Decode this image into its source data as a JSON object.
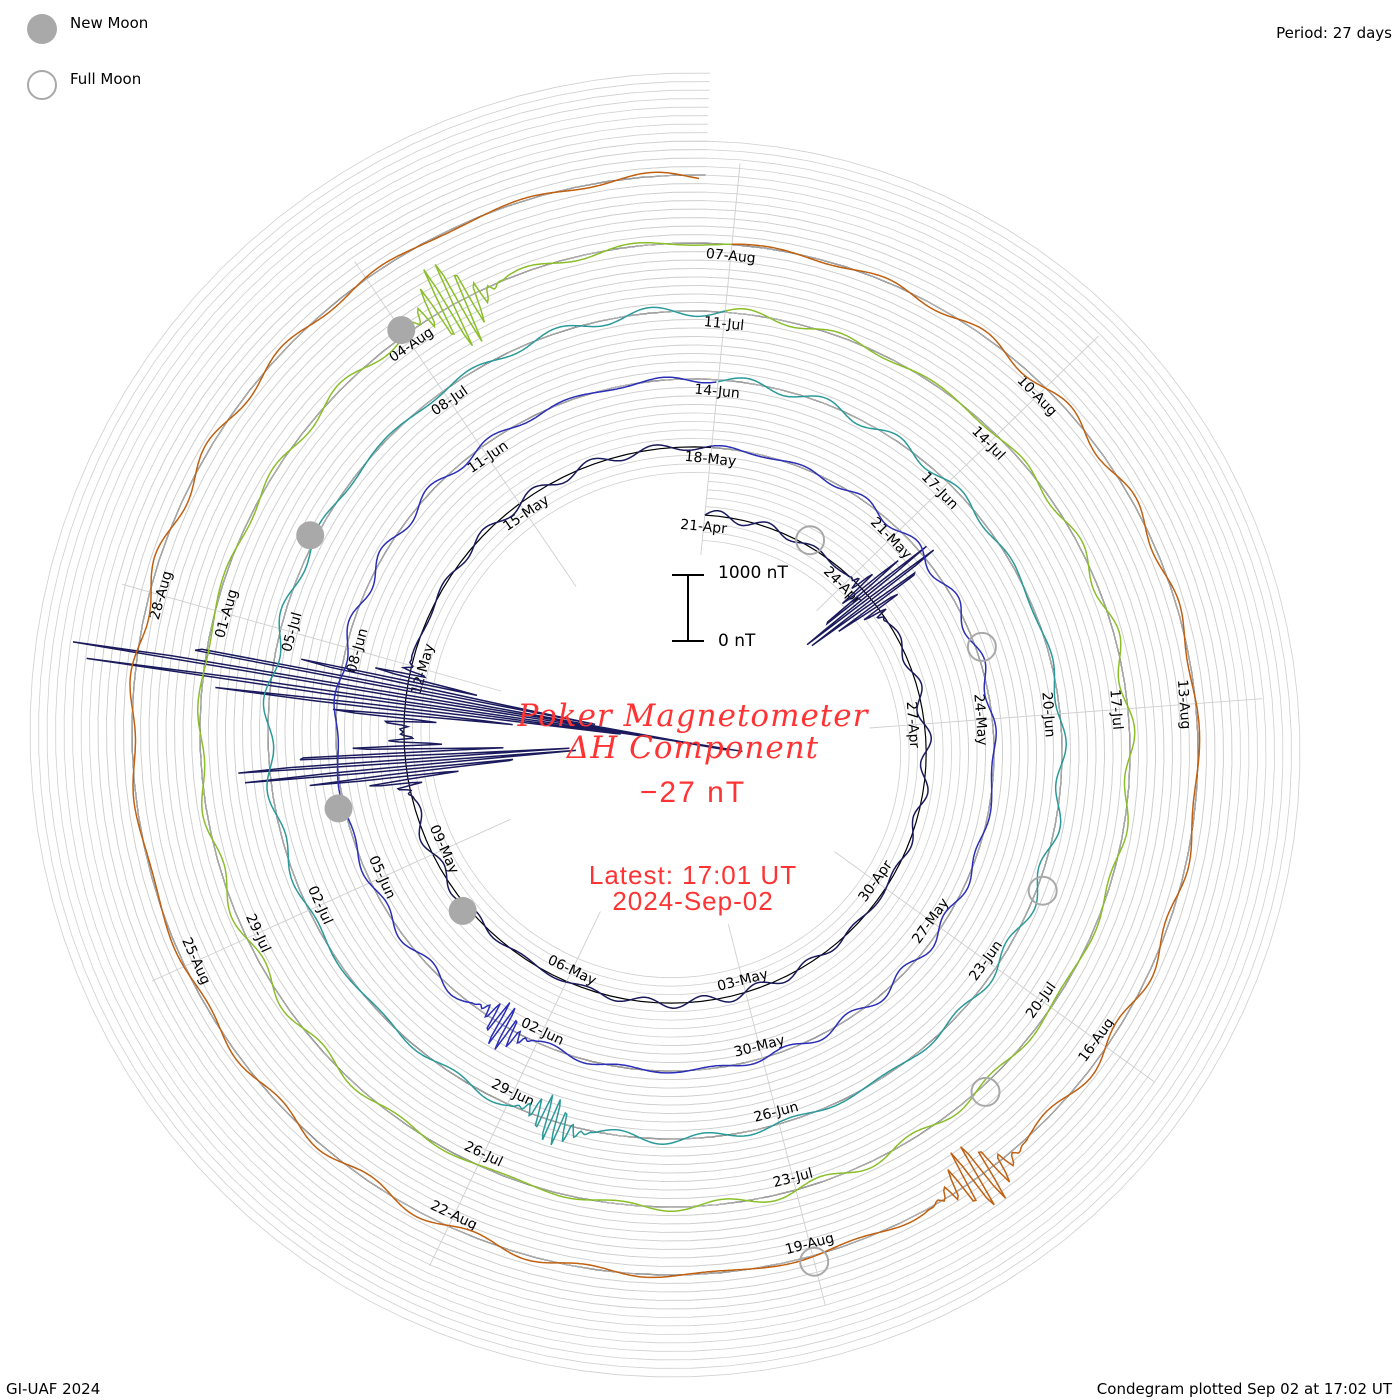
{
  "header": {
    "legend": [
      {
        "label": "New Moon",
        "marker": "filled-gray-circle"
      },
      {
        "label": "Full Moon",
        "marker": "open-gray-circle"
      }
    ],
    "period": "Period: 27 days"
  },
  "center": {
    "title_line1": "Poker Magnetometer",
    "title_line2": "ΔH Component",
    "latest_value": "−27 nT",
    "latest_time": "Latest: 17:01 UT",
    "latest_date": "2024-Sep-02",
    "scale_top": "1000 nT",
    "scale_bottom": "0 nT"
  },
  "footer": {
    "credit": "GI-UAF 2024",
    "plotted": "Condegram plotted Sep 02 at 17:02 UT"
  },
  "colors": {
    "title": "#ff3333",
    "grid": "#c8c8c8",
    "moon": "#a9a9a9"
  },
  "chart_data": {
    "type": "line",
    "subtype": "condegram (polar spiral)",
    "period_days": 27,
    "start_date": "2024-Apr-21",
    "end_date": "2024-Sep-02 17:01 UT",
    "scale_nT": [
      0,
      1000
    ],
    "cycles": [
      {
        "cycle": 1,
        "dates": [
          "21-Apr",
          "24-Apr",
          "27-Apr",
          "30-Apr",
          "03-May",
          "06-May",
          "09-May",
          "12-May",
          "15-May"
        ],
        "color": "#1a1a5c"
      },
      {
        "cycle": 2,
        "dates": [
          "18-May",
          "21-May",
          "24-May",
          "27-May",
          "30-May",
          "02-Jun",
          "05-Jun",
          "08-Jun",
          "11-Jun"
        ],
        "color": "#2b2fb8"
      },
      {
        "cycle": 3,
        "dates": [
          "14-Jun",
          "17-Jun",
          "20-Jun",
          "23-Jun",
          "26-Jun",
          "29-Jun",
          "02-Jul",
          "05-Jul",
          "08-Jul"
        ],
        "color": "#2a9a9a"
      },
      {
        "cycle": 4,
        "dates": [
          "11-Jul",
          "14-Jul",
          "17-Jul",
          "20-Jul",
          "23-Jul",
          "26-Jul",
          "29-Jul",
          "01-Aug",
          "04-Aug"
        ],
        "color": "#8abf2a"
      },
      {
        "cycle": 5,
        "dates": [
          "07-Aug",
          "10-Aug",
          "13-Aug",
          "16-Aug",
          "19-Aug",
          "22-Aug",
          "25-Aug",
          "28-Aug"
        ],
        "color": "#c06010"
      }
    ],
    "events": [
      {
        "date": "24-Apr",
        "value_nT": 1400
      },
      {
        "date": "10-May",
        "value_nT": 3000
      },
      {
        "date": "11-May",
        "value_nT": 6000
      },
      {
        "date": "02-Jun",
        "value_nT": 400
      },
      {
        "date": "28-Jun",
        "value_nT": 400
      },
      {
        "date": "04-Aug",
        "value_nT": 800
      },
      {
        "date": "17-Aug",
        "value_nT": 600
      }
    ],
    "new_moons": [
      "08-May",
      "06-Jun",
      "06-Jul",
      "04-Aug"
    ],
    "full_moons": [
      "23-Apr",
      "23-May",
      "22-Jun",
      "21-Jul",
      "19-Aug"
    ]
  }
}
